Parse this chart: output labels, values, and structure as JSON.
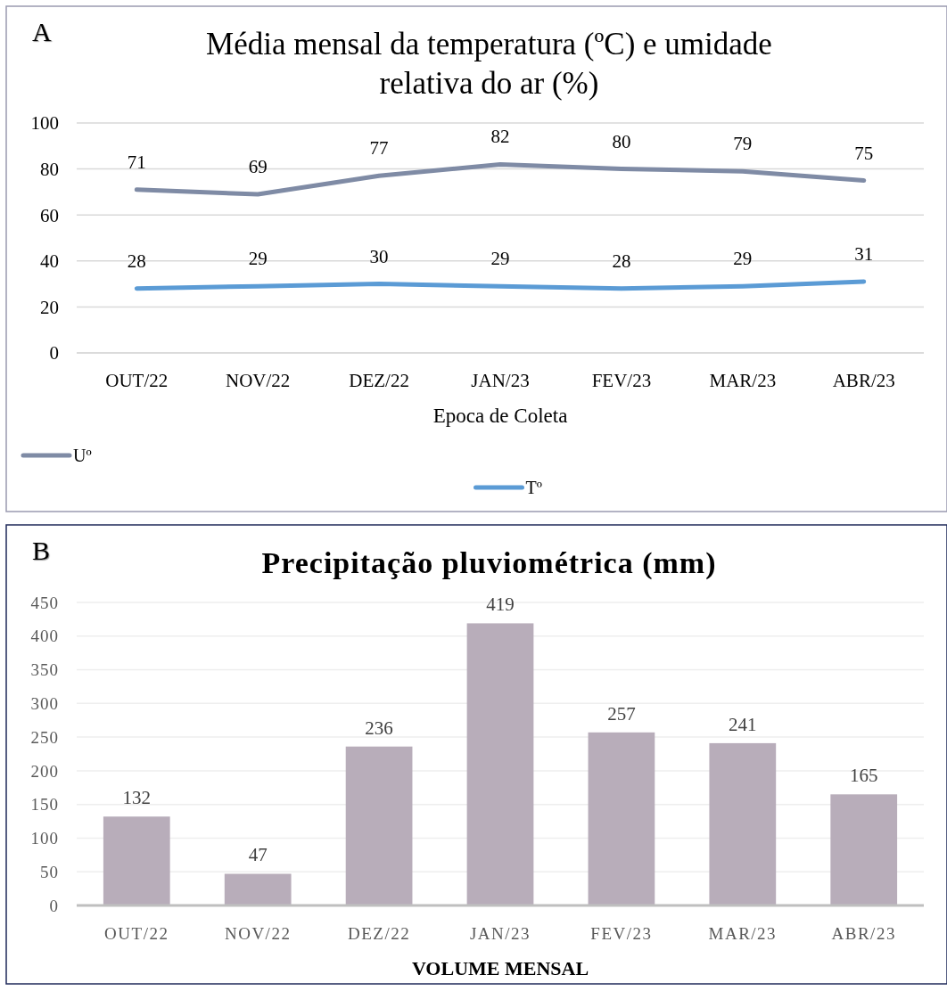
{
  "chart_data": [
    {
      "type": "line",
      "title": "Média mensal da temperatura (ºC) e umidade relativa do ar (%)",
      "xlabel": "Epoca de Coleta",
      "annotations": [
        "A"
      ],
      "categories": [
        "OUT/22",
        "NOV/22",
        "DEZ/22",
        "JAN/23",
        "FEV/23",
        "MAR/23",
        "ABR/23"
      ],
      "series": [
        {
          "name": "Uº",
          "color": "#7f8ba5",
          "values": [
            71,
            69,
            77,
            82,
            80,
            79,
            75
          ]
        },
        {
          "name": "Tº",
          "color": "#5b9bd5",
          "values": [
            28,
            29,
            30,
            29,
            28,
            29,
            31
          ]
        }
      ],
      "ylim": [
        0,
        100
      ],
      "yticks": [
        0,
        20,
        40,
        60,
        80,
        100
      ],
      "grid": "y",
      "legend": "bottom",
      "data_labels": true,
      "marker": "none",
      "line_style": "solid"
    },
    {
      "type": "bar",
      "title": "Precipitação pluviométrica (mm)",
      "xlabel": "VOLUME MENSAL",
      "annotations": [
        "B"
      ],
      "categories": [
        "OUT/22",
        "NOV/22",
        "DEZ/22",
        "JAN/23",
        "FEV/23",
        "MAR/23",
        "ABR/23"
      ],
      "series": [
        {
          "color": "#b8adba",
          "values": [
            132,
            47,
            236,
            419,
            257,
            241,
            165
          ]
        }
      ],
      "ylim": [
        0,
        450
      ],
      "yticks": [
        0,
        50,
        100,
        150,
        200,
        250,
        300,
        350,
        400,
        450
      ],
      "grid": "y",
      "legend": false,
      "data_labels": true
    }
  ]
}
